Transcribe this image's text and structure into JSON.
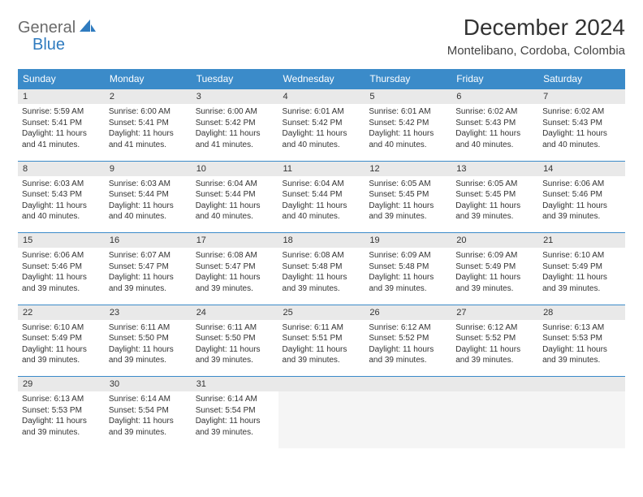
{
  "logo": {
    "word1": "General",
    "word2": "Blue"
  },
  "title": "December 2024",
  "location": "Montelibano, Cordoba, Colombia",
  "header_bg": "#3b8bc9",
  "header_fg": "#ffffff",
  "daynum_bg": "#e9e9e9",
  "border_color": "#3b8bc9",
  "days": [
    "Sunday",
    "Monday",
    "Tuesday",
    "Wednesday",
    "Thursday",
    "Friday",
    "Saturday"
  ],
  "weeks": [
    [
      {
        "n": "1",
        "sr": "Sunrise: 5:59 AM",
        "ss": "Sunset: 5:41 PM",
        "d1": "Daylight: 11 hours",
        "d2": "and 41 minutes."
      },
      {
        "n": "2",
        "sr": "Sunrise: 6:00 AM",
        "ss": "Sunset: 5:41 PM",
        "d1": "Daylight: 11 hours",
        "d2": "and 41 minutes."
      },
      {
        "n": "3",
        "sr": "Sunrise: 6:00 AM",
        "ss": "Sunset: 5:42 PM",
        "d1": "Daylight: 11 hours",
        "d2": "and 41 minutes."
      },
      {
        "n": "4",
        "sr": "Sunrise: 6:01 AM",
        "ss": "Sunset: 5:42 PM",
        "d1": "Daylight: 11 hours",
        "d2": "and 40 minutes."
      },
      {
        "n": "5",
        "sr": "Sunrise: 6:01 AM",
        "ss": "Sunset: 5:42 PM",
        "d1": "Daylight: 11 hours",
        "d2": "and 40 minutes."
      },
      {
        "n": "6",
        "sr": "Sunrise: 6:02 AM",
        "ss": "Sunset: 5:43 PM",
        "d1": "Daylight: 11 hours",
        "d2": "and 40 minutes."
      },
      {
        "n": "7",
        "sr": "Sunrise: 6:02 AM",
        "ss": "Sunset: 5:43 PM",
        "d1": "Daylight: 11 hours",
        "d2": "and 40 minutes."
      }
    ],
    [
      {
        "n": "8",
        "sr": "Sunrise: 6:03 AM",
        "ss": "Sunset: 5:43 PM",
        "d1": "Daylight: 11 hours",
        "d2": "and 40 minutes."
      },
      {
        "n": "9",
        "sr": "Sunrise: 6:03 AM",
        "ss": "Sunset: 5:44 PM",
        "d1": "Daylight: 11 hours",
        "d2": "and 40 minutes."
      },
      {
        "n": "10",
        "sr": "Sunrise: 6:04 AM",
        "ss": "Sunset: 5:44 PM",
        "d1": "Daylight: 11 hours",
        "d2": "and 40 minutes."
      },
      {
        "n": "11",
        "sr": "Sunrise: 6:04 AM",
        "ss": "Sunset: 5:44 PM",
        "d1": "Daylight: 11 hours",
        "d2": "and 40 minutes."
      },
      {
        "n": "12",
        "sr": "Sunrise: 6:05 AM",
        "ss": "Sunset: 5:45 PM",
        "d1": "Daylight: 11 hours",
        "d2": "and 39 minutes."
      },
      {
        "n": "13",
        "sr": "Sunrise: 6:05 AM",
        "ss": "Sunset: 5:45 PM",
        "d1": "Daylight: 11 hours",
        "d2": "and 39 minutes."
      },
      {
        "n": "14",
        "sr": "Sunrise: 6:06 AM",
        "ss": "Sunset: 5:46 PM",
        "d1": "Daylight: 11 hours",
        "d2": "and 39 minutes."
      }
    ],
    [
      {
        "n": "15",
        "sr": "Sunrise: 6:06 AM",
        "ss": "Sunset: 5:46 PM",
        "d1": "Daylight: 11 hours",
        "d2": "and 39 minutes."
      },
      {
        "n": "16",
        "sr": "Sunrise: 6:07 AM",
        "ss": "Sunset: 5:47 PM",
        "d1": "Daylight: 11 hours",
        "d2": "and 39 minutes."
      },
      {
        "n": "17",
        "sr": "Sunrise: 6:08 AM",
        "ss": "Sunset: 5:47 PM",
        "d1": "Daylight: 11 hours",
        "d2": "and 39 minutes."
      },
      {
        "n": "18",
        "sr": "Sunrise: 6:08 AM",
        "ss": "Sunset: 5:48 PM",
        "d1": "Daylight: 11 hours",
        "d2": "and 39 minutes."
      },
      {
        "n": "19",
        "sr": "Sunrise: 6:09 AM",
        "ss": "Sunset: 5:48 PM",
        "d1": "Daylight: 11 hours",
        "d2": "and 39 minutes."
      },
      {
        "n": "20",
        "sr": "Sunrise: 6:09 AM",
        "ss": "Sunset: 5:49 PM",
        "d1": "Daylight: 11 hours",
        "d2": "and 39 minutes."
      },
      {
        "n": "21",
        "sr": "Sunrise: 6:10 AM",
        "ss": "Sunset: 5:49 PM",
        "d1": "Daylight: 11 hours",
        "d2": "and 39 minutes."
      }
    ],
    [
      {
        "n": "22",
        "sr": "Sunrise: 6:10 AM",
        "ss": "Sunset: 5:49 PM",
        "d1": "Daylight: 11 hours",
        "d2": "and 39 minutes."
      },
      {
        "n": "23",
        "sr": "Sunrise: 6:11 AM",
        "ss": "Sunset: 5:50 PM",
        "d1": "Daylight: 11 hours",
        "d2": "and 39 minutes."
      },
      {
        "n": "24",
        "sr": "Sunrise: 6:11 AM",
        "ss": "Sunset: 5:50 PM",
        "d1": "Daylight: 11 hours",
        "d2": "and 39 minutes."
      },
      {
        "n": "25",
        "sr": "Sunrise: 6:11 AM",
        "ss": "Sunset: 5:51 PM",
        "d1": "Daylight: 11 hours",
        "d2": "and 39 minutes."
      },
      {
        "n": "26",
        "sr": "Sunrise: 6:12 AM",
        "ss": "Sunset: 5:52 PM",
        "d1": "Daylight: 11 hours",
        "d2": "and 39 minutes."
      },
      {
        "n": "27",
        "sr": "Sunrise: 6:12 AM",
        "ss": "Sunset: 5:52 PM",
        "d1": "Daylight: 11 hours",
        "d2": "and 39 minutes."
      },
      {
        "n": "28",
        "sr": "Sunrise: 6:13 AM",
        "ss": "Sunset: 5:53 PM",
        "d1": "Daylight: 11 hours",
        "d2": "and 39 minutes."
      }
    ],
    [
      {
        "n": "29",
        "sr": "Sunrise: 6:13 AM",
        "ss": "Sunset: 5:53 PM",
        "d1": "Daylight: 11 hours",
        "d2": "and 39 minutes."
      },
      {
        "n": "30",
        "sr": "Sunrise: 6:14 AM",
        "ss": "Sunset: 5:54 PM",
        "d1": "Daylight: 11 hours",
        "d2": "and 39 minutes."
      },
      {
        "n": "31",
        "sr": "Sunrise: 6:14 AM",
        "ss": "Sunset: 5:54 PM",
        "d1": "Daylight: 11 hours",
        "d2": "and 39 minutes."
      },
      null,
      null,
      null,
      null
    ]
  ]
}
